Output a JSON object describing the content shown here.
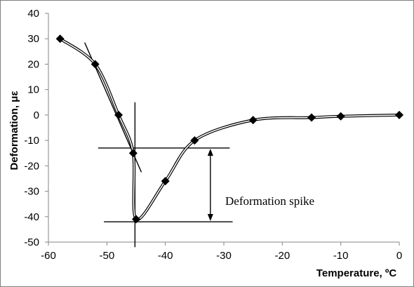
{
  "chart_data": {
    "type": "scatter",
    "title": "",
    "xlabel": "Temperature, ºC",
    "ylabel": "Deformation, με",
    "xlim": [
      -60,
      0
    ],
    "ylim": [
      -50,
      40
    ],
    "x_ticks": [
      "-60",
      "-50",
      "-40",
      "-30",
      "-20",
      "-10",
      "0"
    ],
    "y_ticks": [
      "40",
      "30",
      "20",
      "10",
      "0",
      "-10",
      "-20",
      "-30",
      "-40",
      "-50"
    ],
    "grid": false,
    "legend": "none",
    "series": [
      {
        "marker": "diamond",
        "line": "smooth double line",
        "color": "#000000",
        "points": [
          {
            "x": -58,
            "y": 30
          },
          {
            "x": -52,
            "y": 20
          },
          {
            "x": -48,
            "y": 0
          },
          {
            "x": -45.5,
            "y": -15
          },
          {
            "x": -45,
            "y": -41
          },
          {
            "x": -40,
            "y": -26
          },
          {
            "x": -35,
            "y": -10
          },
          {
            "x": -25,
            "y": -2
          },
          {
            "x": -15,
            "y": -1
          },
          {
            "x": -10,
            "y": -0.5
          },
          {
            "x": 0,
            "y": 0
          }
        ]
      }
    ],
    "annotations": {
      "label": "Deformation spike",
      "upper_y": -13,
      "lower_y": -42,
      "vertical_x": -45.2
    }
  }
}
